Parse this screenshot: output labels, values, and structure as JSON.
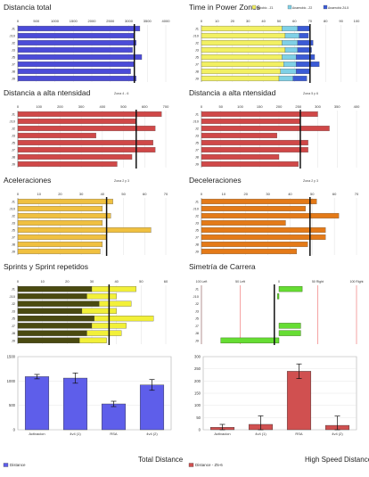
{
  "footer": {
    "left_label": "Total Distance",
    "right_label": "High Speed Distance"
  },
  "chart_data": [
    {
      "type": "bar",
      "orientation": "horizontal",
      "title": "Distancia total",
      "subtitle": "",
      "categories": [
        "J1",
        "J10",
        "J2",
        "J3",
        "J5",
        "J7",
        "J8",
        "J9"
      ],
      "values": [
        3300,
        3150,
        3200,
        3100,
        3350,
        3150,
        3050,
        3200
      ],
      "xlim": [
        0,
        4000
      ],
      "ticks": [
        0,
        500,
        1000,
        1500,
        2000,
        2500,
        3000,
        3500,
        4000
      ],
      "marker": 3150,
      "colors": {
        "bar": "#4b4bd8"
      }
    },
    {
      "type": "bar",
      "orientation": "horizontal",
      "stacked": true,
      "title": "Time in Power Zones",
      "subtitle": "",
      "categories": [
        "J1",
        "J10",
        "J2",
        "J3",
        "J5",
        "J7",
        "J8",
        "J9"
      ],
      "series": [
        {
          "name": "Aerobic - Z1",
          "values": [
            52,
            54,
            52,
            54,
            52,
            53,
            51,
            50
          ]
        },
        {
          "name": "Anaerobic - Z2",
          "values": [
            10,
            9,
            10,
            8,
            9,
            8,
            10,
            9
          ]
        },
        {
          "name": "Anaerobic Z4-5",
          "values": [
            8,
            6,
            10,
            9,
            12,
            15,
            9,
            9
          ]
        }
      ],
      "xlim": [
        0,
        100
      ],
      "ticks": [
        0,
        10,
        20,
        30,
        40,
        50,
        60,
        70,
        80,
        90,
        100
      ],
      "marker": 70,
      "colors": {
        "series": [
          "#f2f062",
          "#7fd0e6",
          "#3b5bd6"
        ]
      }
    },
    {
      "type": "bar",
      "orientation": "horizontal",
      "title": "Distancia a alta ntensidad",
      "subtitle": "Zona 4 - 6",
      "categories": [
        "J1",
        "J10",
        "J2",
        "J3",
        "J5",
        "J7",
        "J8",
        "J9"
      ],
      "values": [
        680,
        560,
        650,
        370,
        640,
        650,
        540,
        470
      ],
      "xlim": [
        0,
        700
      ],
      "ticks": [
        0,
        100,
        200,
        300,
        400,
        500,
        600,
        700
      ],
      "marker": 560,
      "colors": {
        "bar": "#d04848"
      }
    },
    {
      "type": "bar",
      "orientation": "horizontal",
      "title": "Distancia a alta ntensidad",
      "subtitle": "Zona 5 y 6",
      "categories": [
        "J1",
        "J10",
        "J2",
        "J3",
        "J5",
        "J7",
        "J8",
        "J9"
      ],
      "values": [
        300,
        255,
        330,
        195,
        275,
        275,
        200,
        250
      ],
      "xlim": [
        0,
        400
      ],
      "ticks": [
        0,
        50,
        100,
        150,
        200,
        250,
        300,
        350,
        400
      ],
      "marker": 255,
      "colors": {
        "bar": "#d04848"
      }
    },
    {
      "type": "bar",
      "orientation": "horizontal",
      "title": "Aceleraciones",
      "subtitle": "Zona 2 y 3",
      "categories": [
        "J1",
        "J10",
        "J2",
        "J3",
        "J5",
        "J7",
        "J8",
        "J9"
      ],
      "values": [
        45,
        40,
        44,
        40,
        63,
        42,
        40,
        39
      ],
      "xlim": [
        0,
        70
      ],
      "ticks": [
        0,
        10,
        20,
        30,
        40,
        50,
        60,
        70
      ],
      "marker": 42,
      "colors": {
        "bar": "#f0c040"
      }
    },
    {
      "type": "bar",
      "orientation": "horizontal",
      "title": "Deceleraciones",
      "subtitle": "Zona 2 y 3",
      "categories": [
        "J1",
        "J10",
        "J2",
        "J3",
        "J5",
        "J7",
        "J8",
        "J9"
      ],
      "values": [
        52,
        47,
        62,
        38,
        56,
        56,
        48,
        43
      ],
      "xlim": [
        0,
        70
      ],
      "ticks": [
        0,
        10,
        20,
        30,
        40,
        50,
        60,
        70
      ],
      "marker": 49,
      "colors": {
        "bar": "#e47a18"
      }
    },
    {
      "type": "bar",
      "orientation": "horizontal",
      "title": "Sprints y Sprint repetidos",
      "subtitle": "",
      "categories": [
        "J1",
        "J10",
        "J2",
        "J3",
        "J5",
        "J7",
        "J8",
        "J9"
      ],
      "series": [
        {
          "name": "Sprints repetidos",
          "values": [
            30,
            28,
            33,
            26,
            31,
            30,
            28,
            25
          ]
        },
        {
          "name": "Sprints",
          "values": [
            48,
            40,
            46,
            40,
            55,
            44,
            42,
            36
          ]
        }
      ],
      "xlim": [
        0,
        60
      ],
      "ticks": [
        0,
        10,
        20,
        30,
        40,
        50,
        60
      ],
      "marker": 37,
      "colors": {
        "series": [
          "#4a4a10",
          "#f2f038"
        ]
      }
    },
    {
      "type": "bar",
      "orientation": "horizontal",
      "diverging": true,
      "title": "Simetría de Carrera",
      "subtitle": "",
      "categories": [
        "J1",
        "J10",
        "J2",
        "J3",
        "J5",
        "J7",
        "J8",
        "J9"
      ],
      "values": [
        30,
        -2,
        0,
        0,
        0,
        28,
        28,
        -75
      ],
      "xlim": [
        -100,
        100
      ],
      "tick_labels": [
        "100 Left",
        "50 Left",
        "0",
        "50 Right",
        "100 Right"
      ],
      "marker": -6,
      "colors": {
        "bar": "#66dd33"
      }
    },
    {
      "type": "bar",
      "title": "",
      "subtitle": "",
      "categories": [
        "Activacion",
        "4v4 (1)",
        "RSA",
        "4v4 (2)"
      ],
      "values": [
        1090,
        1060,
        530,
        920
      ],
      "errors": [
        45,
        105,
        55,
        110
      ],
      "ylim": [
        0,
        1500
      ],
      "ticks": [
        0,
        500,
        1000,
        1500
      ],
      "legend": "Distance",
      "colors": {
        "bar": "#5e5eea"
      }
    },
    {
      "type": "bar",
      "title": "",
      "subtitle": "",
      "categories": [
        "Activacion",
        "4v4 (1)",
        "RSA",
        "4v4 (2)"
      ],
      "values": [
        10,
        22,
        240,
        18
      ],
      "errors": [
        12,
        35,
        30,
        38
      ],
      "ylim": [
        0,
        300
      ],
      "ticks": [
        0,
        50,
        100,
        150,
        200,
        250,
        300
      ],
      "legend": "Distance - Z5-6",
      "colors": {
        "bar": "#d05050"
      }
    }
  ]
}
